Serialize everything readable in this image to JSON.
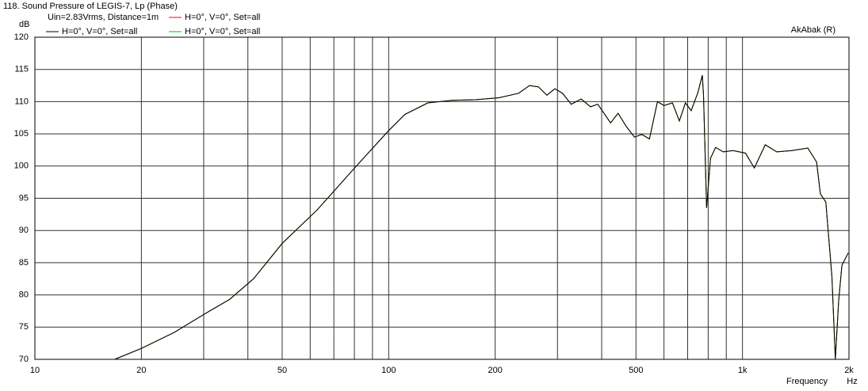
{
  "chart_data": {
    "type": "line",
    "title": "118. Sound Pressure of LEGIS-7, Lp (Phase)",
    "subtitle": "Uin=2.83Vrms, Distance=1m",
    "watermark": "AkAbak (R)",
    "y_label": "dB",
    "x_label": "Frequency",
    "x_unit": "Hz",
    "x_log": true,
    "grid": true,
    "xlim": [
      10,
      2000
    ],
    "ylim": [
      70,
      120
    ],
    "xticks": [
      10,
      20,
      50,
      100,
      200,
      500,
      {
        "value": 1000,
        "label": "1k"
      },
      {
        "value": 2000,
        "label": "2k"
      }
    ],
    "xminor": [
      30,
      40,
      60,
      70,
      80,
      90,
      300,
      400,
      600,
      700,
      800,
      900
    ],
    "yticks": [
      70,
      75,
      80,
      85,
      90,
      95,
      100,
      105,
      110,
      115,
      120
    ],
    "x": [
      16.8,
      20,
      24.8,
      30.5,
      35.5,
      41.5,
      50,
      62.8,
      81,
      100,
      111,
      129,
      151,
      176,
      205,
      233,
      250,
      265,
      280,
      295,
      310,
      328,
      350,
      372,
      390,
      424,
      445,
      470,
      495,
      520,
      546,
      575,
      600,
      634,
      663,
      690,
      716,
      748,
      770,
      776,
      792,
      812,
      840,
      882,
      940,
      1020,
      1080,
      1160,
      1250,
      1380,
      1530,
      1620,
      1660,
      1720,
      1790,
      1830,
      1870,
      1910,
      1990
    ],
    "series": [
      {
        "name": "H=0°, V=0°, Set=all",
        "color": "#ff0000",
        "values": [
          70,
          71.7,
          74.2,
          77.2,
          79.3,
          82.5,
          88,
          93.2,
          100,
          105.5,
          108,
          109.8,
          110.2,
          110.3,
          110.6,
          111.3,
          112.5,
          112.3,
          111,
          112,
          111.3,
          109.6,
          110.4,
          109.2,
          109.6,
          106.7,
          108.2,
          106.1,
          104.5,
          104.9,
          104.2,
          110,
          109.4,
          109.8,
          107,
          109.8,
          108.6,
          111.4,
          114.1,
          111,
          93.5,
          101.2,
          102.9,
          102.2,
          102.4,
          102,
          99.7,
          103.3,
          102.2,
          102.4,
          102.8,
          100.6,
          95.7,
          94.4,
          82.8,
          70,
          79.1,
          84.6,
          86.5
        ]
      },
      {
        "name": "H=0°, V=0°, Set=all",
        "color": "#00c000",
        "values": [
          70,
          71.7,
          74.2,
          77.2,
          79.3,
          82.5,
          88,
          93.2,
          100,
          105.5,
          108,
          109.8,
          110.2,
          110.3,
          110.6,
          111.3,
          112.5,
          112.3,
          111,
          112,
          111.3,
          109.6,
          110.4,
          109.2,
          109.6,
          106.7,
          108.2,
          106.1,
          104.5,
          104.9,
          104.2,
          110,
          109.4,
          109.8,
          107,
          109.8,
          108.6,
          111.4,
          114.1,
          111,
          93.5,
          101.2,
          102.9,
          102.2,
          102.4,
          102,
          99.7,
          103.3,
          102.2,
          102.4,
          102.8,
          100.6,
          95.7,
          94.4,
          82.8,
          70,
          79.1,
          84.6,
          86.5
        ]
      },
      {
        "name": "H=0°, V=0°, Set=all",
        "color": "#000000",
        "values": [
          70,
          71.7,
          74.2,
          77.2,
          79.3,
          82.5,
          88,
          93.2,
          100,
          105.5,
          108,
          109.8,
          110.2,
          110.3,
          110.6,
          111.3,
          112.5,
          112.3,
          111,
          112,
          111.3,
          109.6,
          110.4,
          109.2,
          109.6,
          106.7,
          108.2,
          106.1,
          104.5,
          104.9,
          104.2,
          110,
          109.4,
          109.8,
          107,
          109.8,
          108.6,
          111.4,
          114.1,
          111,
          93.5,
          101.2,
          102.9,
          102.2,
          102.4,
          102,
          99.7,
          103.3,
          102.2,
          102.4,
          102.8,
          100.6,
          95.7,
          94.4,
          82.8,
          70,
          79.1,
          84.6,
          86.5
        ]
      }
    ]
  }
}
